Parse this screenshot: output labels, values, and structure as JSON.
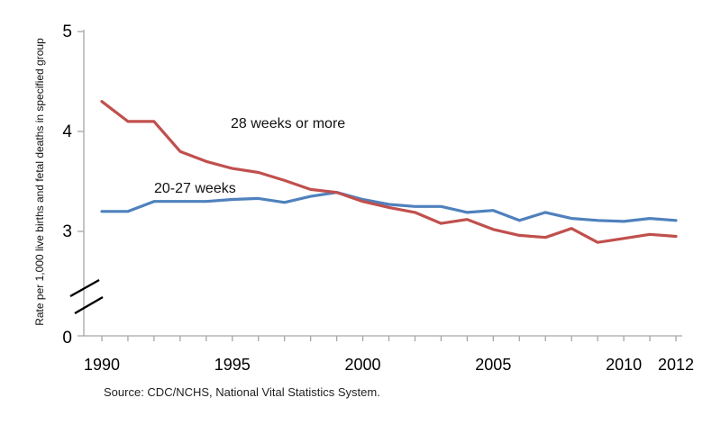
{
  "chart_data": {
    "type": "line",
    "title": "",
    "xlabel": "",
    "ylabel": "Rate per 1,000 live births and fetal deaths in specified group",
    "source_note": "Source: CDC/NCHS, National Vital Statistics System.",
    "grid": false,
    "legend_position": "inline-labels-near-lines",
    "x": [
      1990,
      1991,
      1992,
      1993,
      1994,
      1995,
      1996,
      1997,
      1998,
      1999,
      2000,
      2001,
      2002,
      2003,
      2004,
      2005,
      2006,
      2007,
      2008,
      2009,
      2010,
      2011,
      2012
    ],
    "x_labeled_ticks": [
      1990,
      1995,
      2000,
      2005,
      2010,
      2012
    ],
    "y_ticks_shown": [
      0,
      3,
      4,
      5
    ],
    "y_axis_break_between": [
      0,
      3
    ],
    "ylim": [
      0,
      5
    ],
    "series": [
      {
        "name": "20-27 weeks",
        "color": "#4F81BD",
        "values": [
          3.2,
          3.2,
          3.3,
          3.3,
          3.3,
          3.32,
          3.33,
          3.29,
          3.35,
          3.39,
          3.32,
          3.27,
          3.25,
          3.25,
          3.19,
          3.21,
          3.11,
          3.19,
          3.13,
          3.11,
          3.1,
          3.13,
          3.11
        ]
      },
      {
        "name": "28 weeks or more",
        "color": "#C0504D",
        "values": [
          4.3,
          4.1,
          4.1,
          3.8,
          3.7,
          3.63,
          3.59,
          3.51,
          3.42,
          3.39,
          3.3,
          3.24,
          3.19,
          3.08,
          3.12,
          3.02,
          2.96,
          2.94,
          3.03,
          2.89,
          2.93,
          2.97,
          2.95
        ]
      }
    ]
  },
  "colors": {
    "axis": "#A6A6A6",
    "tick": "#A6A6A6",
    "break_mark": "#000000",
    "tick_label": "#000000"
  }
}
